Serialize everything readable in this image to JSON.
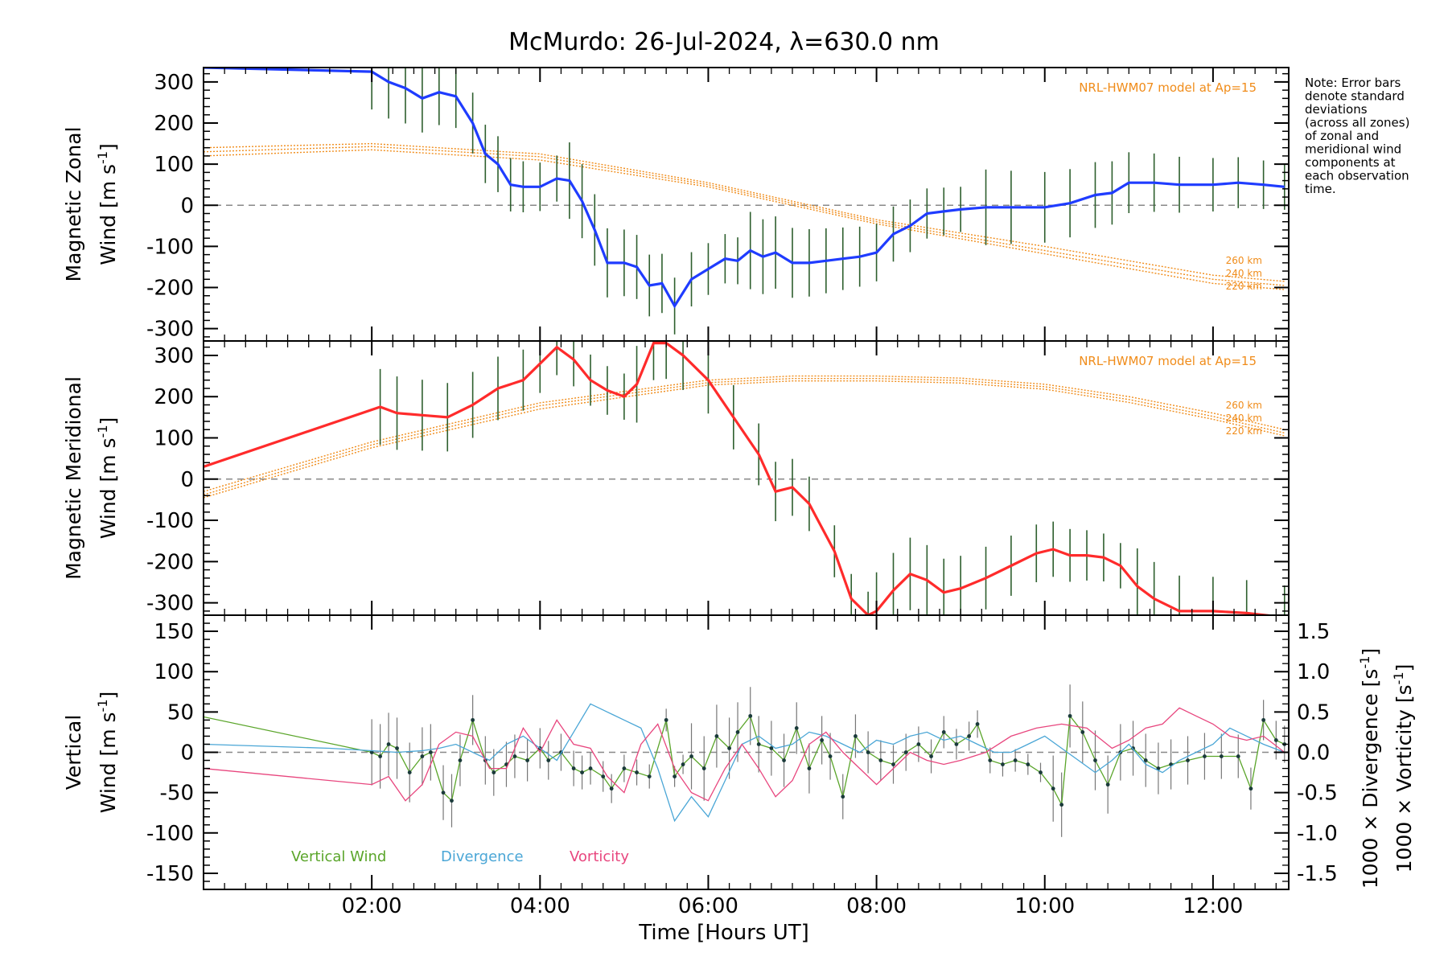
{
  "title": "McMurdo: 26-Jul-2024, λ=630.0 nm",
  "note_lines": [
    "Note: Error bars",
    "denote standard",
    "deviations",
    "(across all zones)",
    "of zonal and",
    "meridional wind",
    "components at",
    "each observation",
    "time."
  ],
  "colors": {
    "zonal": "#1f3cff",
    "meridional": "#ff2b2b",
    "vertical": "#5aa52a",
    "divergence": "#4aa6d6",
    "vorticity": "#e8467e",
    "model": "#f08c1a",
    "zero": "#888888"
  },
  "chart_data": [
    {
      "type": "line",
      "panel": "zonal",
      "ylabel_line1": "Magnetic Zonal",
      "ylabel_line2": "Wind [m s",
      "ylabel_sup": "-1",
      "ylabel_close": "]",
      "ylim": [
        -330,
        335
      ],
      "yticks": [
        -300,
        -200,
        -100,
        0,
        100,
        200,
        300
      ],
      "model_label": "NRL-HWM07 model at Ap=15",
      "altitude_labels": [
        "260 km",
        "240 km",
        "220 km"
      ],
      "series": [
        {
          "name": "Zonal wind",
          "x": [
            0.0,
            2.0,
            2.2,
            2.4,
            2.6,
            2.8,
            3.0,
            3.2,
            3.35,
            3.5,
            3.65,
            3.8,
            4.0,
            4.2,
            4.35,
            4.5,
            4.65,
            4.8,
            5.0,
            5.15,
            5.3,
            5.45,
            5.6,
            5.8,
            6.0,
            6.2,
            6.35,
            6.5,
            6.65,
            6.8,
            7.0,
            7.2,
            7.4,
            7.6,
            7.8,
            8.0,
            8.2,
            8.4,
            8.6,
            8.8,
            9.0,
            9.3,
            9.6,
            10.0,
            10.3,
            10.6,
            10.8,
            11.0,
            11.3,
            11.6,
            12.0,
            12.3,
            12.6,
            12.85
          ],
          "y": [
            335,
            325,
            300,
            285,
            260,
            275,
            265,
            200,
            125,
            100,
            50,
            45,
            45,
            65,
            60,
            10,
            -60,
            -140,
            -140,
            -150,
            -195,
            -190,
            -245,
            -180,
            -155,
            -130,
            -135,
            -110,
            -125,
            -115,
            -140,
            -140,
            -135,
            -130,
            -125,
            -115,
            -70,
            -50,
            -20,
            -15,
            -10,
            -5,
            -5,
            -5,
            5,
            25,
            30,
            55,
            55,
            50,
            50,
            55,
            50,
            45
          ]
        }
      ],
      "model_curves": [
        {
          "name": "260 km",
          "x": [
            0,
            2,
            4,
            6,
            7,
            8,
            10,
            12,
            12.85
          ],
          "y": [
            140,
            150,
            125,
            55,
            10,
            -35,
            -100,
            -170,
            -185
          ]
        },
        {
          "name": "240 km",
          "x": [
            0,
            2,
            4,
            6,
            7,
            8,
            10,
            12,
            12.85
          ],
          "y": [
            130,
            143,
            118,
            50,
            5,
            -40,
            -110,
            -180,
            -195
          ]
        },
        {
          "name": "220 km",
          "x": [
            0,
            2,
            4,
            6,
            7,
            8,
            10,
            12,
            12.85
          ],
          "y": [
            120,
            135,
            110,
            45,
            0,
            -45,
            -118,
            -190,
            -205
          ]
        }
      ]
    },
    {
      "type": "line",
      "panel": "meridional",
      "ylabel_line1": "Magnetic Meridional",
      "ylabel_line2": "Wind [m s",
      "ylabel_sup": "-1",
      "ylabel_close": "]",
      "ylim": [
        -330,
        335
      ],
      "yticks": [
        -300,
        -200,
        -100,
        0,
        100,
        200,
        300
      ],
      "model_label": "NRL-HWM07 model at Ap=15",
      "altitude_labels": [
        "260 km",
        "240 km",
        "220 km"
      ],
      "series": [
        {
          "name": "Meridional wind",
          "x": [
            0.0,
            2.1,
            2.3,
            2.6,
            2.9,
            3.2,
            3.5,
            3.8,
            4.0,
            4.2,
            4.4,
            4.6,
            4.8,
            5.0,
            5.15,
            5.35,
            5.5,
            5.7,
            6.0,
            6.3,
            6.6,
            6.8,
            7.0,
            7.2,
            7.5,
            7.7,
            7.9,
            8.0,
            8.2,
            8.4,
            8.6,
            8.8,
            9.0,
            9.3,
            9.6,
            9.9,
            10.1,
            10.3,
            10.5,
            10.7,
            10.9,
            11.1,
            11.3,
            11.6,
            12.0,
            12.4,
            12.85
          ],
          "y": [
            30,
            175,
            160,
            155,
            150,
            180,
            220,
            240,
            280,
            320,
            290,
            240,
            215,
            200,
            230,
            330,
            330,
            300,
            240,
            150,
            60,
            -30,
            -20,
            -60,
            -175,
            -290,
            -330,
            -320,
            -270,
            -230,
            -245,
            -275,
            -265,
            -240,
            -210,
            -180,
            -170,
            -185,
            -185,
            -190,
            -210,
            -260,
            -290,
            -320,
            -320,
            -325,
            -335
          ]
        }
      ],
      "model_curves": [
        {
          "name": "260 km",
          "x": [
            0,
            2,
            4,
            6,
            7,
            8,
            9,
            10,
            11,
            12,
            12.85
          ],
          "y": [
            -30,
            90,
            185,
            240,
            250,
            250,
            245,
            230,
            200,
            160,
            120
          ]
        },
        {
          "name": "240 km",
          "x": [
            0,
            2,
            4,
            6,
            7,
            8,
            9,
            10,
            11,
            12,
            12.85
          ],
          "y": [
            -38,
            83,
            178,
            234,
            244,
            244,
            239,
            224,
            193,
            152,
            112
          ]
        },
        {
          "name": "220 km",
          "x": [
            0,
            2,
            4,
            6,
            7,
            8,
            9,
            10,
            11,
            12,
            12.85
          ],
          "y": [
            -45,
            76,
            170,
            228,
            238,
            238,
            233,
            218,
            186,
            145,
            105
          ]
        }
      ]
    },
    {
      "type": "line",
      "panel": "vertical",
      "ylabel_line1": "Vertical",
      "ylabel_line2": "Wind [m s",
      "ylabel_sup": "-1",
      "ylabel_close": "]",
      "ylim": [
        -170,
        170
      ],
      "yticks": [
        -150,
        -100,
        -50,
        0,
        50,
        100,
        150
      ],
      "y2lim": [
        -1.7,
        1.7
      ],
      "y2ticks": [
        -1.5,
        -1.0,
        -0.5,
        0.0,
        0.5,
        1.0,
        1.5
      ],
      "y2ticklabels": [
        "-1.5",
        "-1.0",
        "-0.5",
        "0.0",
        "0.5",
        "1.0",
        "1.5"
      ],
      "y2label_div": "1000 × Divergence [s",
      "y2label_vor": "1000 × Vorticity [s",
      "y2label_sup": "-1",
      "y2label_close": "]",
      "legend": [
        "Vertical Wind",
        "Divergence",
        "Vorticity"
      ],
      "series": [
        {
          "name": "Vertical Wind",
          "x": [
            0.0,
            2.0,
            2.1,
            2.2,
            2.3,
            2.45,
            2.6,
            2.7,
            2.85,
            2.95,
            3.05,
            3.2,
            3.35,
            3.45,
            3.6,
            3.7,
            3.85,
            4.0,
            4.1,
            4.25,
            4.4,
            4.5,
            4.6,
            4.75,
            4.85,
            5.0,
            5.15,
            5.3,
            5.5,
            5.6,
            5.7,
            5.8,
            5.95,
            6.1,
            6.25,
            6.35,
            6.5,
            6.6,
            6.75,
            6.9,
            7.05,
            7.2,
            7.35,
            7.45,
            7.6,
            7.75,
            7.9,
            8.05,
            8.2,
            8.35,
            8.5,
            8.65,
            8.8,
            8.95,
            9.1,
            9.2,
            9.35,
            9.5,
            9.65,
            9.8,
            9.95,
            10.1,
            10.2,
            10.3,
            10.45,
            10.6,
            10.75,
            10.9,
            11.05,
            11.2,
            11.35,
            11.5,
            11.7,
            11.9,
            12.1,
            12.3,
            12.45,
            12.6,
            12.75,
            12.85
          ],
          "y": [
            44,
            0,
            -5,
            10,
            5,
            -25,
            -5,
            0,
            -50,
            -60,
            -10,
            40,
            -10,
            -25,
            -15,
            -5,
            -10,
            5,
            -10,
            0,
            -20,
            -25,
            -20,
            -30,
            -45,
            -20,
            -25,
            -30,
            40,
            -30,
            -15,
            -5,
            -20,
            20,
            5,
            25,
            45,
            10,
            5,
            -10,
            30,
            -20,
            15,
            -5,
            -55,
            20,
            0,
            -10,
            -15,
            0,
            10,
            -5,
            25,
            10,
            20,
            35,
            -10,
            -15,
            -10,
            -15,
            -25,
            -45,
            -65,
            45,
            25,
            -10,
            -40,
            0,
            5,
            -10,
            -20,
            -15,
            -10,
            -5,
            -5,
            -5,
            -45,
            40,
            15,
            10
          ]
        },
        {
          "name": "Divergence",
          "x": [
            0.0,
            1.5,
            2.0,
            2.3,
            2.6,
            2.8,
            3.0,
            3.2,
            3.4,
            3.6,
            3.8,
            4.0,
            4.2,
            4.4,
            4.6,
            4.8,
            5.0,
            5.2,
            5.4,
            5.6,
            5.8,
            6.0,
            6.2,
            6.4,
            6.6,
            6.8,
            7.0,
            7.2,
            7.4,
            7.6,
            7.8,
            8.0,
            8.2,
            8.4,
            8.6,
            8.8,
            9.0,
            9.2,
            9.4,
            9.6,
            9.8,
            10.0,
            10.2,
            10.4,
            10.6,
            10.8,
            11.0,
            11.2,
            11.4,
            11.6,
            11.8,
            12.0,
            12.2,
            12.4,
            12.6,
            12.85
          ],
          "y": [
            0.1,
            0.05,
            0.02,
            0.0,
            0.02,
            0.05,
            0.1,
            0.0,
            -0.1,
            0.1,
            0.2,
            0.05,
            -0.1,
            0.25,
            0.6,
            0.5,
            0.4,
            0.3,
            -0.2,
            -0.85,
            -0.55,
            -0.8,
            -0.35,
            0.1,
            0.2,
            0.05,
            0.1,
            0.25,
            0.2,
            0.1,
            0.0,
            0.15,
            0.1,
            0.2,
            0.25,
            0.15,
            0.2,
            0.1,
            0.0,
            0.0,
            0.1,
            0.2,
            0.05,
            -0.1,
            -0.25,
            -0.1,
            0.1,
            -0.15,
            -0.25,
            -0.1,
            0.0,
            0.1,
            0.3,
            0.2,
            0.1,
            0.0
          ]
        },
        {
          "name": "Vorticity",
          "x": [
            0.0,
            2.0,
            2.2,
            2.4,
            2.6,
            2.8,
            3.0,
            3.2,
            3.4,
            3.6,
            3.8,
            4.0,
            4.2,
            4.4,
            4.6,
            4.8,
            5.0,
            5.2,
            5.4,
            5.6,
            5.8,
            6.0,
            6.2,
            6.4,
            6.6,
            6.8,
            7.0,
            7.2,
            7.4,
            7.6,
            7.8,
            8.0,
            8.2,
            8.4,
            8.6,
            8.8,
            9.0,
            9.3,
            9.6,
            9.9,
            10.2,
            10.5,
            10.8,
            11.0,
            11.2,
            11.4,
            11.6,
            11.8,
            12.0,
            12.2,
            12.4,
            12.6,
            12.85
          ],
          "y": [
            -0.2,
            -0.4,
            -0.3,
            -0.6,
            -0.4,
            0.1,
            0.25,
            0.2,
            -0.2,
            -0.2,
            0.3,
            0.0,
            0.4,
            0.1,
            0.05,
            -0.3,
            -0.5,
            0.1,
            0.35,
            -0.2,
            -0.5,
            -0.6,
            -0.2,
            0.1,
            -0.2,
            -0.55,
            -0.35,
            0.1,
            0.25,
            0.0,
            -0.2,
            -0.4,
            -0.2,
            0.0,
            -0.1,
            -0.15,
            -0.1,
            0.0,
            0.2,
            0.3,
            0.35,
            0.3,
            0.05,
            0.15,
            0.3,
            0.35,
            0.55,
            0.45,
            0.35,
            0.2,
            0.15,
            0.2,
            0.0
          ]
        }
      ]
    }
  ],
  "xaxis": {
    "xlim": [
      0.0,
      12.9
    ],
    "tick_values": [
      2,
      4,
      6,
      8,
      10,
      12
    ],
    "tick_labels": [
      "02:00",
      "04:00",
      "06:00",
      "08:00",
      "10:00",
      "12:00"
    ],
    "label": "Time [Hours UT]"
  }
}
